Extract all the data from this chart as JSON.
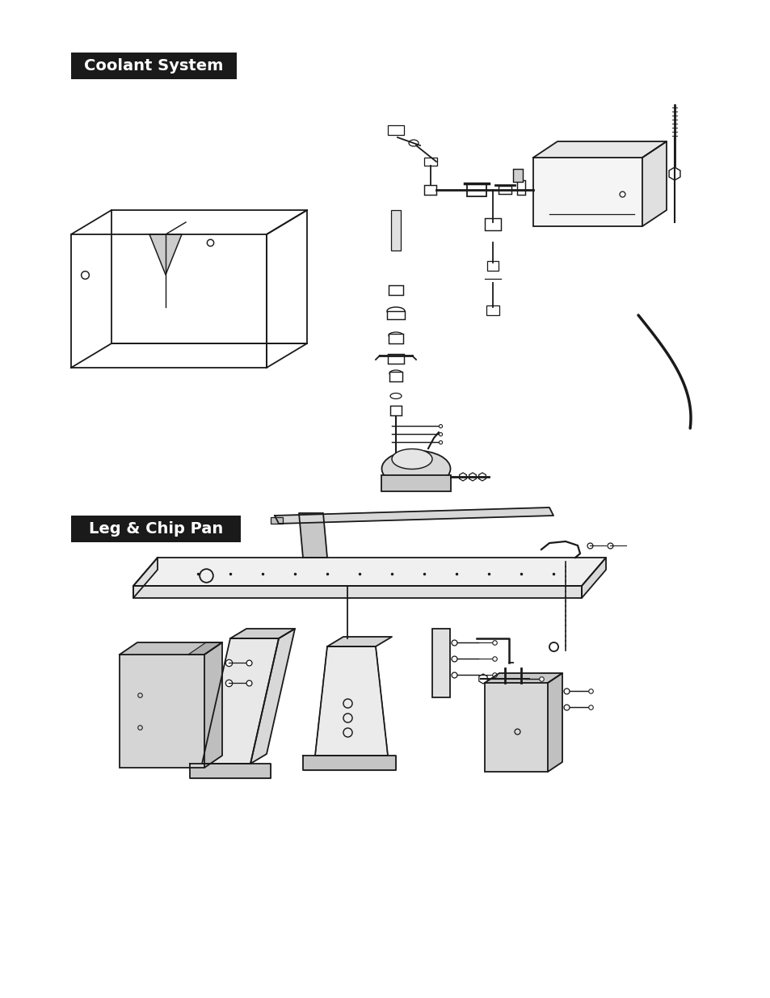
{
  "title1": "Coolant System",
  "title2": "Leg & Chip Pan",
  "bg_color": "#ffffff",
  "title_bg": "#1a1a1a",
  "title_fg": "#ffffff",
  "title_fontsize": 14,
  "fig_width": 9.54,
  "fig_height": 12.35
}
